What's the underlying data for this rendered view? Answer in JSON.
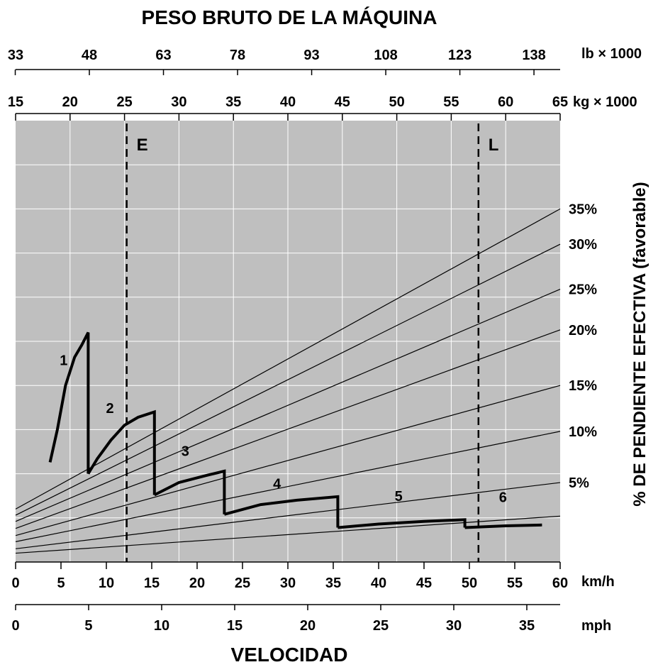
{
  "chart_data": {
    "type": "line",
    "title": "PESO BRUTO DE LA MÁQUINA",
    "xlabel": "VELOCIDAD",
    "ylabel": "% DE PENDIENTE EFECTIVA (favorable)",
    "grid": true,
    "background": "#bfbfbf",
    "top_axis_lb": {
      "unit": "lb × 1000",
      "ticks": [
        "33",
        "48",
        "63",
        "78",
        "93",
        "108",
        "123",
        "138"
      ]
    },
    "top_axis_kg": {
      "unit": "kg × 1000",
      "range": [
        15,
        65
      ],
      "ticks": [
        "15",
        "20",
        "25",
        "30",
        "35",
        "40",
        "45",
        "50",
        "55",
        "60",
        "65"
      ]
    },
    "bottom_axis_kmh": {
      "unit": "km/h",
      "range": [
        0,
        60
      ],
      "ticks": [
        "0",
        "5",
        "10",
        "15",
        "20",
        "25",
        "30",
        "35",
        "40",
        "45",
        "50",
        "55",
        "60"
      ]
    },
    "bottom_axis_mph": {
      "unit": "mph",
      "ticks": [
        "0",
        "5",
        "10",
        "15",
        "20",
        "25",
        "30",
        "35"
      ]
    },
    "grade_lines": [
      {
        "label": "",
        "kg_at_left": 16.0,
        "kg_at_right": 20.2
      },
      {
        "label": "5%",
        "kg_at_left": 16.5,
        "kg_at_right": 24.0
      },
      {
        "label": "10%",
        "kg_at_left": 17.3,
        "kg_at_right": 29.8
      },
      {
        "label": "15%",
        "kg_at_left": 18.0,
        "kg_at_right": 35.0
      },
      {
        "label": "20%",
        "kg_at_left": 18.8,
        "kg_at_right": 41.3
      },
      {
        "label": "25%",
        "kg_at_left": 19.6,
        "kg_at_right": 45.9
      },
      {
        "label": "30%",
        "kg_at_left": 20.3,
        "kg_at_right": 51.0
      },
      {
        "label": "35%",
        "kg_at_left": 21.0,
        "kg_at_right": 55.0
      }
    ],
    "markers": [
      {
        "label": "E",
        "kg": 25.2
      },
      {
        "label": "L",
        "kg": 57.5
      }
    ],
    "series": [
      {
        "name": "1",
        "points": [
          [
            3.8,
            26.3
          ],
          [
            4.6,
            30.0
          ],
          [
            5.5,
            35.0
          ],
          [
            6.5,
            38.2
          ],
          [
            7.3,
            39.6
          ],
          [
            8.0,
            41.0
          ],
          [
            8.0,
            25.0
          ]
        ]
      },
      {
        "name": "2",
        "points": [
          [
            8.0,
            25.0
          ],
          [
            9.0,
            26.7
          ],
          [
            10.5,
            28.8
          ],
          [
            12.0,
            30.5
          ],
          [
            13.5,
            31.4
          ],
          [
            15.3,
            32.0
          ],
          [
            15.3,
            22.6
          ]
        ]
      },
      {
        "name": "3",
        "points": [
          [
            15.3,
            22.6
          ],
          [
            18.0,
            24.0
          ],
          [
            21.0,
            24.8
          ],
          [
            23.0,
            25.3
          ],
          [
            23.0,
            20.4
          ]
        ]
      },
      {
        "name": "4",
        "points": [
          [
            23.0,
            20.4
          ],
          [
            27.0,
            21.5
          ],
          [
            31.0,
            22.0
          ],
          [
            35.5,
            22.4
          ],
          [
            35.5,
            18.9
          ]
        ]
      },
      {
        "name": "5",
        "points": [
          [
            35.5,
            18.9
          ],
          [
            40.0,
            19.3
          ],
          [
            45.0,
            19.6
          ],
          [
            49.5,
            19.8
          ],
          [
            49.5,
            18.9
          ]
        ]
      },
      {
        "name": "6",
        "points": [
          [
            49.5,
            18.9
          ],
          [
            54.0,
            19.1
          ],
          [
            58.0,
            19.2
          ]
        ]
      }
    ],
    "series_labels": [
      {
        "text": "1",
        "kmh": 5.3,
        "kg": 37.3
      },
      {
        "text": "2",
        "kmh": 10.4,
        "kg": 31.9
      },
      {
        "text": "3",
        "kmh": 18.7,
        "kg": 27.0
      },
      {
        "text": "4",
        "kmh": 28.8,
        "kg": 23.3
      },
      {
        "text": "5",
        "kmh": 42.2,
        "kg": 21.9
      },
      {
        "text": "6",
        "kmh": 53.7,
        "kg": 21.8
      }
    ]
  }
}
